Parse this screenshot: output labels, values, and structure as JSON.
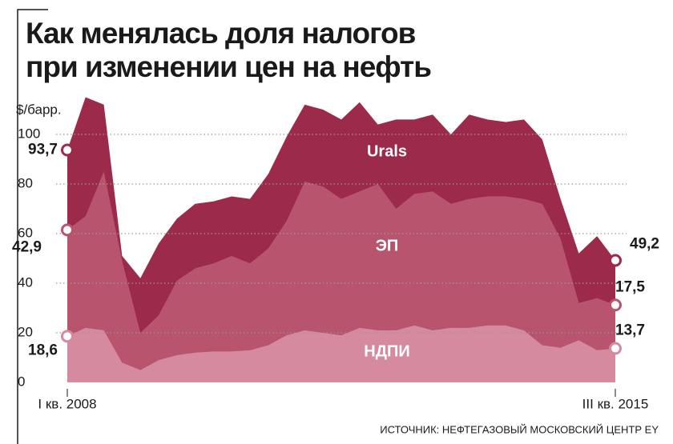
{
  "chart_data": {
    "type": "area",
    "title": [
      "Как менялась  доля налогов",
      "при изменении цен на нефть"
    ],
    "y_label": "$/барр.",
    "source": "ИСТОЧНИК: НЕФТЕГАЗОВЫЙ МОСКОВСКИЙ ЦЕНТР EY",
    "categories": [
      "I кв. 2008",
      null,
      null,
      null,
      null,
      null,
      null,
      null,
      null,
      null,
      null,
      null,
      null,
      null,
      null,
      null,
      null,
      null,
      null,
      null,
      null,
      null,
      null,
      null,
      null,
      null,
      null,
      null,
      null,
      null,
      "III кв. 2015"
    ],
    "series": [
      {
        "name": "Urals",
        "color": "#9b2a4b",
        "stacked": false,
        "values": [
          93.7,
          115,
          112,
          51,
          42,
          56,
          66,
          72,
          73,
          75,
          74,
          84,
          99,
          112,
          110,
          106,
          113,
          104,
          106,
          106,
          108,
          100,
          108,
          106,
          105,
          106,
          98,
          74,
          52,
          59,
          49.2
        ],
        "value_labels": [
          "93,7",
          null,
          null,
          null,
          null,
          null,
          null,
          null,
          null,
          null,
          null,
          null,
          null,
          null,
          null,
          null,
          null,
          null,
          null,
          null,
          null,
          null,
          null,
          null,
          null,
          null,
          null,
          null,
          null,
          null,
          "49,2"
        ]
      },
      {
        "name": "ЭП",
        "color": "#b9546f",
        "stacked": true,
        "values": [
          42.9,
          45,
          64,
          41,
          15,
          18,
          30,
          34,
          35.5,
          38.5,
          35,
          39,
          46,
          60,
          59,
          55,
          55,
          59,
          49,
          53,
          56,
          50,
          52,
          52,
          52,
          53,
          57,
          44,
          15,
          21,
          17.5
        ],
        "value_labels": [
          "42,9",
          null,
          null,
          null,
          null,
          null,
          null,
          null,
          null,
          null,
          null,
          null,
          null,
          null,
          null,
          null,
          null,
          null,
          null,
          null,
          null,
          null,
          null,
          null,
          null,
          null,
          null,
          null,
          null,
          null,
          "17,5"
        ]
      },
      {
        "name": "НДПИ",
        "color": "#d58a9f",
        "stacked": true,
        "values": [
          18.6,
          22,
          21,
          8,
          5,
          9,
          11,
          12,
          12.5,
          12.5,
          13,
          15,
          19,
          21,
          20,
          19,
          22,
          21,
          21,
          23,
          21,
          22,
          22,
          23,
          23,
          21,
          15,
          14,
          17,
          13,
          13.7
        ],
        "value_labels": [
          "18,6",
          null,
          null,
          null,
          null,
          null,
          null,
          null,
          null,
          null,
          null,
          null,
          null,
          null,
          null,
          null,
          null,
          null,
          null,
          null,
          null,
          null,
          null,
          null,
          null,
          null,
          null,
          null,
          null,
          null,
          "13,7"
        ]
      }
    ],
    "ylim": [
      0,
      117
    ],
    "yticks": [
      0,
      20,
      40,
      60,
      80,
      100
    ],
    "grid": true
  }
}
